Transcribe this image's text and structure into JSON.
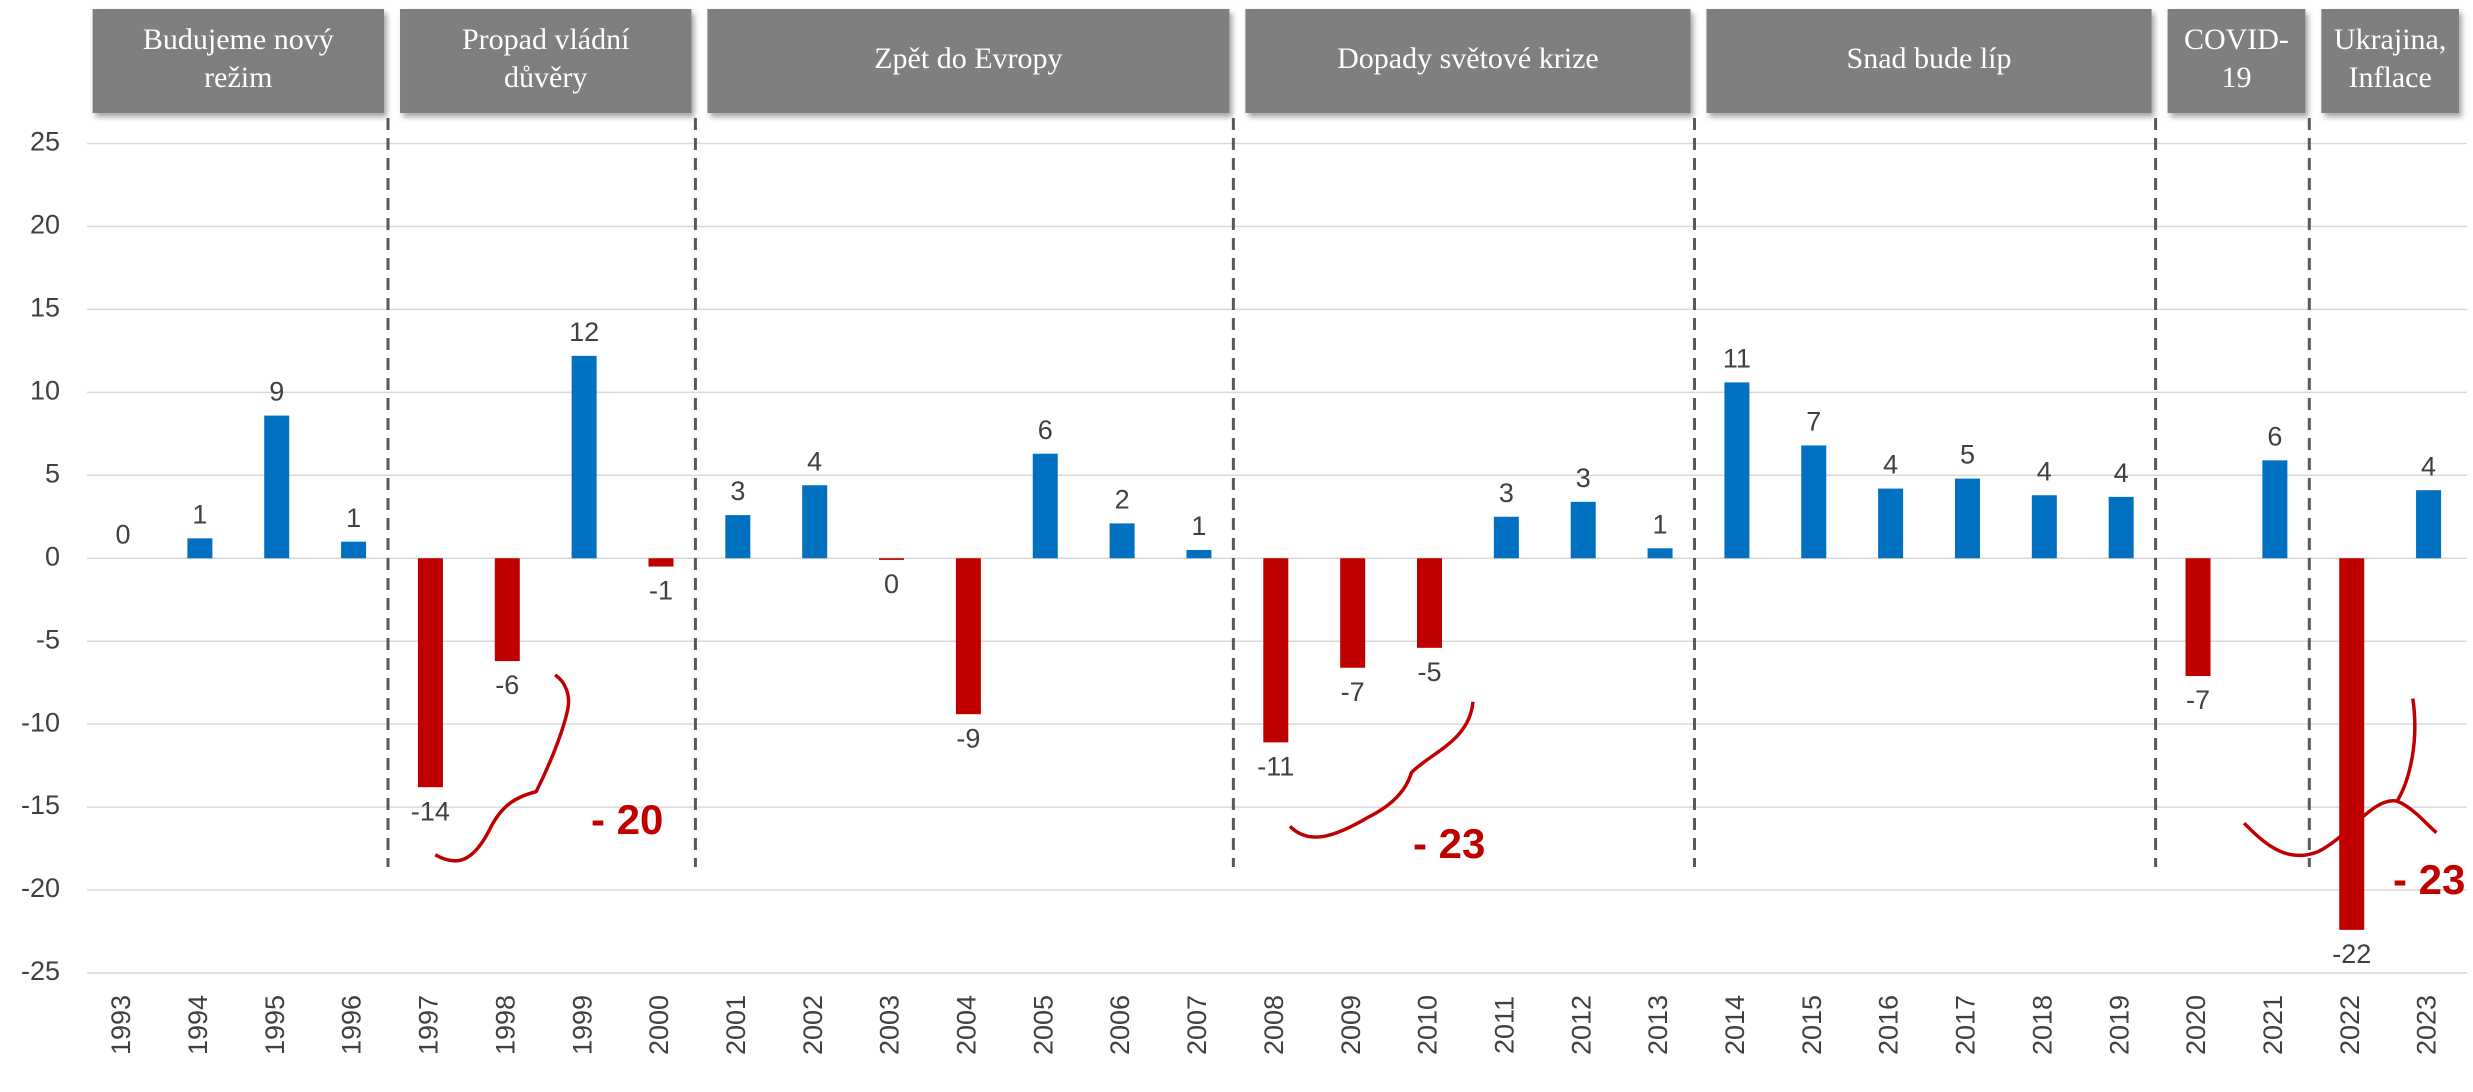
{
  "chart_data": {
    "type": "bar",
    "categories": [
      "1993",
      "1994",
      "1995",
      "1996",
      "1997",
      "1998",
      "1999",
      "2000",
      "2001",
      "2002",
      "2003",
      "2004",
      "2005",
      "2006",
      "2007",
      "2008",
      "2009",
      "2010",
      "2011",
      "2012",
      "2013",
      "2014",
      "2015",
      "2016",
      "2017",
      "2018",
      "2019",
      "2020",
      "2021",
      "2022",
      "2023"
    ],
    "values": [
      0,
      1.2,
      8.6,
      1.0,
      -13.8,
      -6.2,
      12.2,
      -0.5,
      2.6,
      4.4,
      -0.1,
      -9.4,
      6.3,
      2.1,
      0.5,
      -11.1,
      -6.6,
      -5.4,
      2.5,
      3.4,
      0.6,
      10.6,
      6.8,
      4.2,
      4.8,
      3.8,
      3.7,
      -7.1,
      5.9,
      -22.4,
      4.1
    ],
    "value_labels": [
      "0",
      "1",
      "9",
      "1",
      "-14",
      "-6",
      "12",
      "-1",
      "3",
      "4",
      "0",
      "-9",
      "6",
      "2",
      "1",
      "-11",
      "-7",
      "-5",
      "3",
      "3",
      "1",
      "11",
      "7",
      "4",
      "5",
      "4",
      "4",
      "-7",
      "6",
      "-22",
      "4"
    ],
    "color": "#0070c0",
    "negative_color": "#c00000",
    "ylim": [
      -25,
      25
    ],
    "yticks": [
      -25,
      -20,
      -15,
      -10,
      -5,
      0,
      5,
      10,
      15,
      20,
      25
    ],
    "grid": true,
    "periods": [
      {
        "label": [
          "Budujeme nový",
          "režim"
        ]
      },
      {
        "label": [
          "Propad vládní",
          "důvěry"
        ]
      },
      {
        "label": [
          "Zpět do Evropy"
        ]
      },
      {
        "label": [
          "Dopady  světové krize"
        ]
      },
      {
        "label": [
          "Snad bude líp"
        ]
      },
      {
        "label": [
          "COVID-",
          "19"
        ]
      },
      {
        "label": [
          "Ukrajina,",
          "Inflace"
        ]
      }
    ],
    "annotations": [
      "- 20",
      "- 23",
      "- 23"
    ]
  }
}
